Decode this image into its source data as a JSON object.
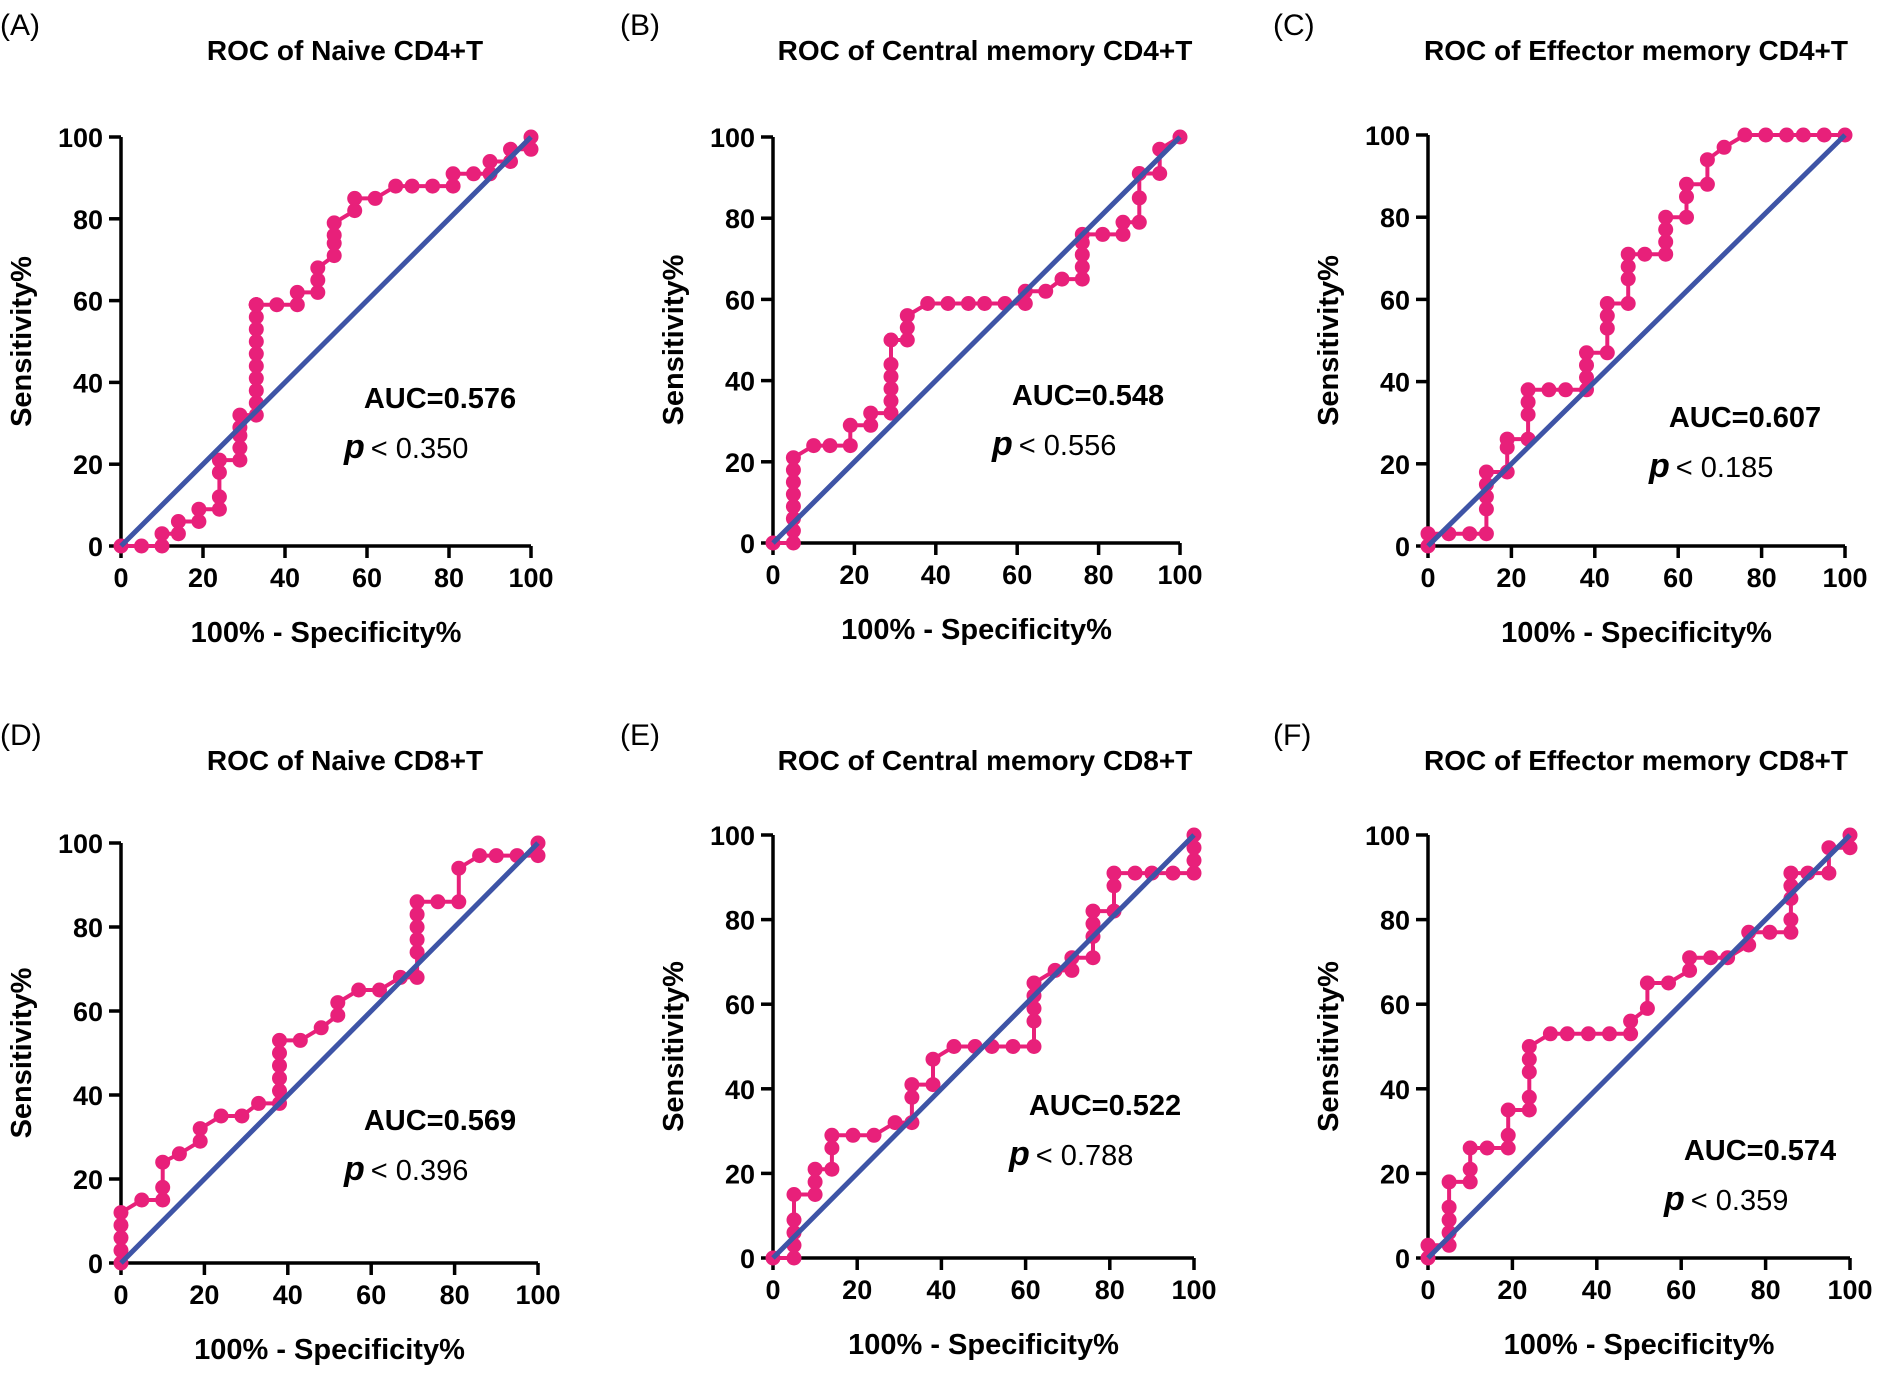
{
  "colors": {
    "roc": "#e8207a",
    "diagonal": "#3e54a6",
    "axis": "#000000"
  },
  "chart_data": [
    {
      "type": "line",
      "panel_label": "(A)",
      "title": "ROC of Naive CD4+T",
      "xlabel": "100% - Specificity%",
      "ylabel": "Sensitivity%",
      "xlim": [
        0,
        100
      ],
      "ylim": [
        0,
        100
      ],
      "xticks": [
        "0",
        "20",
        "40",
        "60",
        "80",
        "100"
      ],
      "yticks": [
        "0",
        "20",
        "40",
        "60",
        "80",
        "100"
      ],
      "auc_text": "AUC=0.576",
      "p_symbol": "p",
      "p_text": "< 0.350",
      "series": [
        {
          "name": "ROC curve",
          "x": [
            0,
            5,
            10,
            10,
            14,
            14,
            19,
            19,
            24,
            24,
            24,
            24,
            29,
            29,
            29,
            29,
            29,
            33,
            33,
            33,
            33,
            33,
            33,
            33,
            33,
            33,
            33,
            33,
            33,
            33,
            33,
            33,
            38,
            43,
            43,
            48,
            48,
            48,
            52,
            52,
            52,
            52,
            57,
            57,
            62,
            67,
            71,
            76,
            81,
            81,
            86,
            90,
            90,
            95,
            95,
            100,
            100
          ],
          "y": [
            0,
            0,
            0,
            3,
            3,
            6,
            6,
            9,
            9,
            12,
            18,
            21,
            21,
            24,
            27,
            29,
            32,
            32,
            35,
            38,
            41,
            44,
            47,
            50,
            53,
            56,
            59,
            59,
            59,
            59,
            59,
            59,
            59,
            59,
            62,
            62,
            65,
            68,
            71,
            74,
            76,
            79,
            82,
            85,
            85,
            88,
            88,
            88,
            88,
            91,
            91,
            91,
            94,
            94,
            97,
            97,
            100
          ]
        },
        {
          "name": "Reference",
          "x": [
            0,
            100
          ],
          "y": [
            0,
            100
          ]
        }
      ]
    },
    {
      "type": "line",
      "panel_label": "(B)",
      "title": "ROC of Central memory CD4+T",
      "xlabel": "100% - Specificity%",
      "ylabel": "Sensitivity%",
      "xlim": [
        0,
        100
      ],
      "ylim": [
        0,
        100
      ],
      "xticks": [
        "0",
        "20",
        "40",
        "60",
        "80",
        "100"
      ],
      "yticks": [
        "0",
        "20",
        "40",
        "60",
        "80",
        "100"
      ],
      "auc_text": "AUC=0.548",
      "p_symbol": "p",
      "p_text": "< 0.556",
      "series": [
        {
          "name": "ROC curve",
          "x": [
            0,
            5,
            5,
            5,
            5,
            5,
            5,
            5,
            5,
            10,
            14,
            19,
            19,
            24,
            24,
            29,
            29,
            29,
            29,
            29,
            29,
            33,
            33,
            33,
            38,
            43,
            48,
            52,
            57,
            62,
            62,
            67,
            71,
            76,
            76,
            76,
            76,
            76,
            81,
            86,
            86,
            90,
            90,
            90,
            95,
            95,
            100
          ],
          "y": [
            0,
            0,
            3,
            6,
            9,
            12,
            15,
            18,
            21,
            24,
            24,
            24,
            29,
            29,
            32,
            32,
            35,
            38,
            41,
            44,
            50,
            50,
            53,
            56,
            59,
            59,
            59,
            59,
            59,
            59,
            62,
            62,
            65,
            65,
            68,
            71,
            74,
            76,
            76,
            76,
            79,
            79,
            85,
            91,
            91,
            97,
            100
          ]
        },
        {
          "name": "Reference",
          "x": [
            0,
            100
          ],
          "y": [
            0,
            100
          ]
        }
      ]
    },
    {
      "type": "line",
      "panel_label": "(C)",
      "title": "ROC of Effector memory CD4+T",
      "xlabel": "100% - Specificity%",
      "ylabel": "Sensitivity%",
      "xlim": [
        0,
        100
      ],
      "ylim": [
        0,
        100
      ],
      "xticks": [
        "0",
        "20",
        "40",
        "60",
        "80",
        "100"
      ],
      "yticks": [
        "0",
        "20",
        "40",
        "60",
        "80",
        "100"
      ],
      "auc_text": "AUC=0.607",
      "p_symbol": "p",
      "p_text": "< 0.185",
      "series": [
        {
          "name": "ROC curve",
          "x": [
            0,
            0,
            5,
            10,
            14,
            14,
            14,
            14,
            14,
            19,
            19,
            19,
            24,
            24,
            24,
            24,
            29,
            33,
            38,
            38,
            38,
            38,
            43,
            43,
            43,
            43,
            48,
            48,
            48,
            48,
            52,
            57,
            57,
            57,
            57,
            62,
            62,
            62,
            67,
            67,
            71,
            76,
            81,
            86,
            90,
            95,
            100
          ],
          "y": [
            0,
            3,
            3,
            3,
            3,
            9,
            12,
            15,
            18,
            18,
            24,
            26,
            26,
            32,
            35,
            38,
            38,
            38,
            38,
            41,
            44,
            47,
            47,
            53,
            56,
            59,
            59,
            65,
            68,
            71,
            71,
            71,
            74,
            77,
            80,
            80,
            85,
            88,
            88,
            94,
            97,
            100,
            100,
            100,
            100,
            100,
            100
          ]
        },
        {
          "name": "Reference",
          "x": [
            0,
            100
          ],
          "y": [
            0,
            100
          ]
        }
      ]
    },
    {
      "type": "line",
      "panel_label": "(D)",
      "title": "ROC of Naive CD8+T",
      "xlabel": "100% - Specificity%",
      "ylabel": "Sensitivity%",
      "xlim": [
        0,
        100
      ],
      "ylim": [
        0,
        100
      ],
      "xticks": [
        "0",
        "20",
        "40",
        "60",
        "80",
        "100"
      ],
      "yticks": [
        "0",
        "20",
        "40",
        "60",
        "80",
        "100"
      ],
      "auc_text": "AUC=0.569",
      "p_symbol": "p",
      "p_text": "< 0.396",
      "series": [
        {
          "name": "ROC curve",
          "x": [
            0,
            0,
            0,
            0,
            0,
            5,
            10,
            10,
            10,
            14,
            19,
            19,
            24,
            29,
            33,
            38,
            38,
            38,
            38,
            38,
            38,
            43,
            48,
            52,
            52,
            57,
            62,
            67,
            71,
            71,
            71,
            71,
            71,
            71,
            76,
            81,
            81,
            86,
            90,
            95,
            100,
            100
          ],
          "y": [
            0,
            3,
            6,
            9,
            12,
            15,
            15,
            18,
            24,
            26,
            29,
            32,
            35,
            35,
            38,
            38,
            41,
            44,
            47,
            50,
            53,
            53,
            56,
            59,
            62,
            65,
            65,
            68,
            68,
            74,
            77,
            80,
            83,
            86,
            86,
            86,
            94,
            97,
            97,
            97,
            97,
            100
          ]
        },
        {
          "name": "Reference",
          "x": [
            0,
            100
          ],
          "y": [
            0,
            100
          ]
        }
      ]
    },
    {
      "type": "line",
      "panel_label": "(E)",
      "title": "ROC of Central memory CD8+T",
      "xlabel": "100% - Specificity%",
      "ylabel": "Sensitivity%",
      "xlim": [
        0,
        100
      ],
      "ylim": [
        0,
        100
      ],
      "xticks": [
        "0",
        "20",
        "40",
        "60",
        "80",
        "100"
      ],
      "yticks": [
        "0",
        "20",
        "40",
        "60",
        "80",
        "100"
      ],
      "auc_text": "AUC=0.522",
      "p_symbol": "p",
      "p_text": "< 0.788",
      "series": [
        {
          "name": "ROC curve",
          "x": [
            0,
            5,
            5,
            5,
            5,
            5,
            10,
            10,
            10,
            14,
            14,
            14,
            19,
            24,
            29,
            33,
            33,
            33,
            38,
            38,
            43,
            48,
            52,
            57,
            62,
            62,
            62,
            62,
            62,
            67,
            71,
            71,
            76,
            76,
            76,
            76,
            81,
            81,
            81,
            86,
            90,
            95,
            100,
            100,
            100,
            100
          ],
          "y": [
            0,
            0,
            3,
            6,
            9,
            15,
            15,
            18,
            21,
            21,
            26,
            29,
            29,
            29,
            32,
            32,
            38,
            41,
            41,
            47,
            50,
            50,
            50,
            50,
            50,
            56,
            59,
            62,
            65,
            68,
            68,
            71,
            71,
            76,
            79,
            82,
            82,
            88,
            91,
            91,
            91,
            91,
            91,
            94,
            97,
            100
          ]
        },
        {
          "name": "Reference",
          "x": [
            0,
            100
          ],
          "y": [
            0,
            100
          ]
        }
      ]
    },
    {
      "type": "line",
      "panel_label": "(F)",
      "title": "ROC of Effector memory CD8+T",
      "xlabel": "100% - Specificity%",
      "ylabel": "Sensitivity%",
      "xlim": [
        0,
        100
      ],
      "ylim": [
        0,
        100
      ],
      "xticks": [
        "0",
        "20",
        "40",
        "60",
        "80",
        "100"
      ],
      "yticks": [
        "0",
        "20",
        "40",
        "60",
        "80",
        "100"
      ],
      "auc_text": "AUC=0.574",
      "p_symbol": "p",
      "p_text": "< 0.359",
      "series": [
        {
          "name": "ROC curve",
          "x": [
            0,
            0,
            5,
            5,
            5,
            5,
            5,
            10,
            10,
            10,
            14,
            19,
            19,
            19,
            24,
            24,
            24,
            24,
            24,
            29,
            33,
            38,
            43,
            48,
            48,
            52,
            52,
            57,
            62,
            62,
            67,
            71,
            76,
            76,
            81,
            86,
            86,
            86,
            86,
            86,
            90,
            95,
            95,
            100,
            100
          ],
          "y": [
            0,
            3,
            3,
            6,
            9,
            12,
            18,
            18,
            21,
            26,
            26,
            26,
            29,
            35,
            35,
            38,
            44,
            47,
            50,
            53,
            53,
            53,
            53,
            53,
            56,
            59,
            65,
            65,
            68,
            71,
            71,
            71,
            74,
            77,
            77,
            77,
            80,
            85,
            88,
            91,
            91,
            91,
            97,
            97,
            100
          ]
        },
        {
          "name": "Reference",
          "x": [
            0,
            100
          ],
          "y": [
            0,
            100
          ]
        }
      ]
    }
  ]
}
